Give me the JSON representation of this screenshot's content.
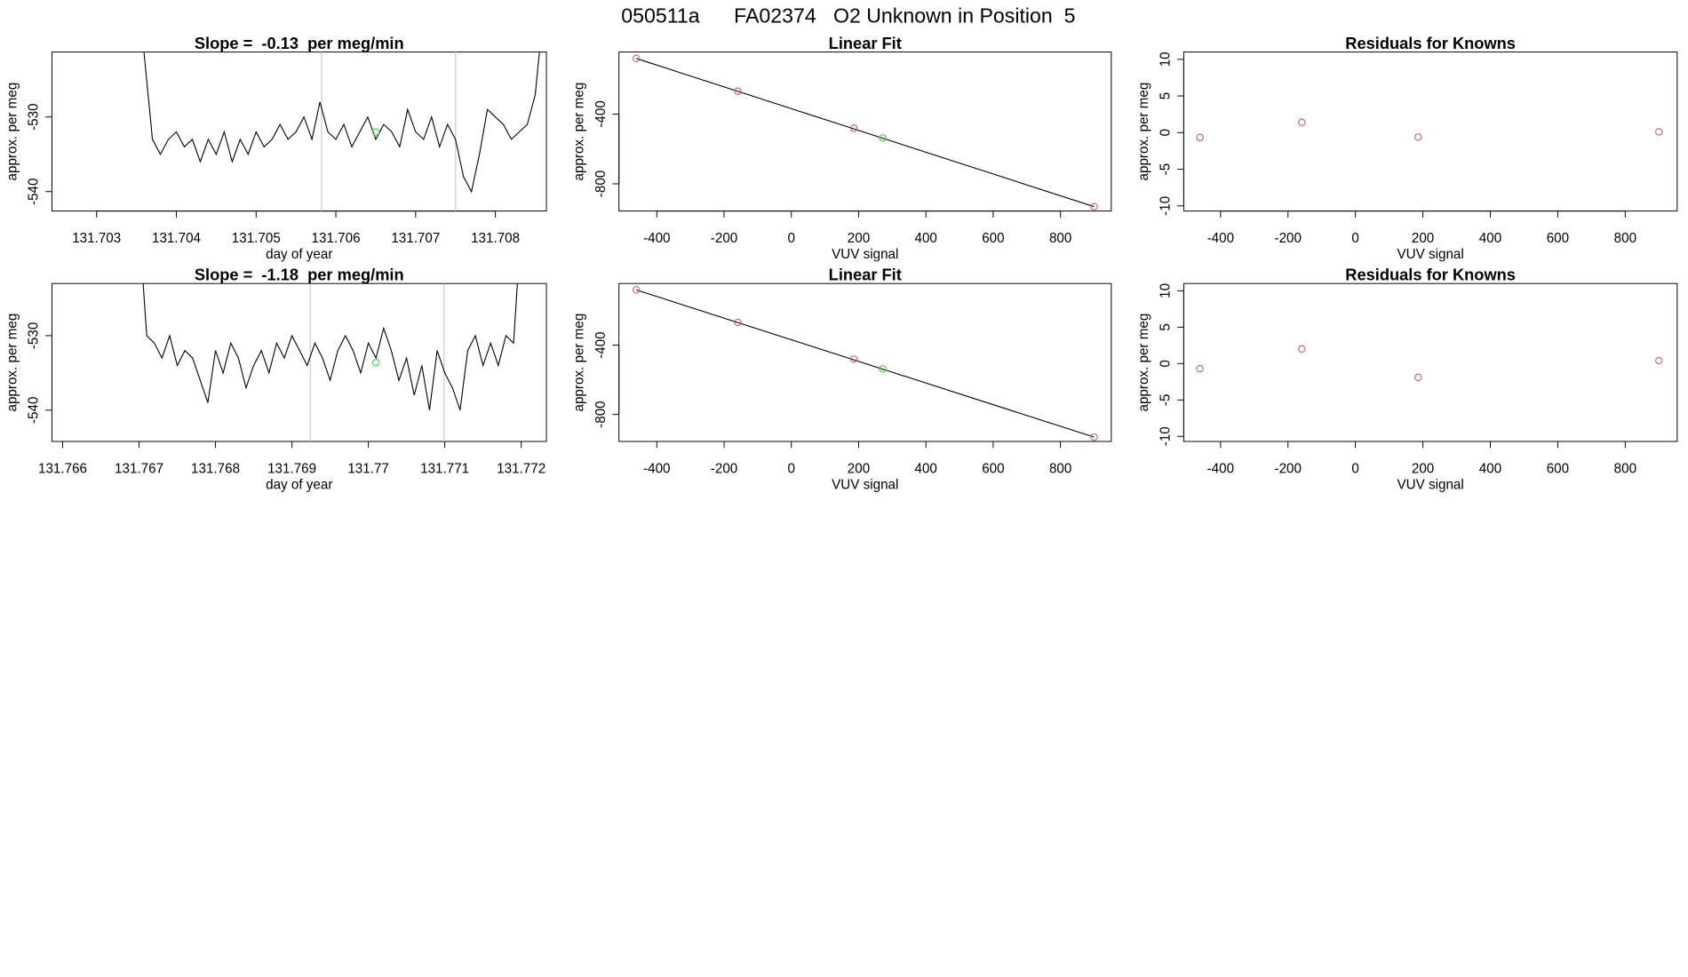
{
  "title": "050511a      FA02374   O2 Unknown in Position  5",
  "chart_data": [
    {
      "type": "line",
      "title": "Slope =  -0.13  per meg/min",
      "xlabel": "day of year",
      "ylabel": "approx. per meg",
      "x": [
        131.7035,
        131.7036,
        131.7037,
        131.7038,
        131.7039,
        131.704,
        131.7041,
        131.7042,
        131.7043,
        131.7044,
        131.7045,
        131.7046,
        131.7047,
        131.7048,
        131.7049,
        131.705,
        131.7051,
        131.7052,
        131.7053,
        131.7054,
        131.7055,
        131.7056,
        131.7057,
        131.7058,
        131.7059,
        131.706,
        131.7061,
        131.7062,
        131.7063,
        131.7064,
        131.7065,
        131.7066,
        131.7067,
        131.7068,
        131.7069,
        131.707,
        131.7071,
        131.7072,
        131.7073,
        131.7074,
        131.7075,
        131.7076,
        131.7077,
        131.7078,
        131.7079,
        131.708,
        131.7081,
        131.7082,
        131.7083,
        131.7084,
        131.7085,
        131.7086
      ],
      "values": [
        -510,
        -522,
        -533,
        -535,
        -533,
        -532,
        -534,
        -533,
        -536,
        -533,
        -535,
        -532,
        -536,
        -533,
        -535,
        -532,
        -534,
        -533,
        -531,
        -533,
        -532,
        -530,
        -533,
        -528,
        -532,
        -533,
        -531,
        -534,
        -532,
        -530,
        -533,
        -531,
        -532,
        -534,
        -529,
        -532,
        -533,
        -530,
        -534,
        -531,
        -533,
        -538,
        -540,
        -535,
        -529,
        -530,
        -531,
        -533,
        -532,
        -531,
        -527,
        -516
      ],
      "color": "#000000",
      "xlim": [
        131.70244,
        131.70864
      ],
      "ylim": [
        -542.6,
        -521.3
      ],
      "xticks": [
        131.703,
        131.704,
        131.705,
        131.706,
        131.707,
        131.708
      ],
      "yticks": [
        -540,
        -530
      ],
      "vlines": [
        131.70582,
        131.7075
      ],
      "vline_color": "#cccccc",
      "unknown": {
        "x": 131.7065,
        "y": -532,
        "color": "#33dd33"
      }
    },
    {
      "type": "scatter",
      "title": "Linear Fit",
      "xlabel": "VUV signal",
      "ylabel": "approx. per meg",
      "x": [
        -461,
        -159,
        186,
        900
      ],
      "values": [
        -81,
        -269,
        -481,
        -931
      ],
      "color": "#cd5c5c",
      "xlim": [
        -512.6,
        951
      ],
      "ylim": [
        -956,
        -44
      ],
      "xticks": [
        -400,
        -200,
        0,
        200,
        400,
        600,
        800
      ],
      "yticks": [
        -800,
        -400
      ],
      "fit": {
        "x": [
          -461,
          900
        ],
        "y": [
          -81,
          -931
        ],
        "color": "#000000"
      },
      "unknown": {
        "x": 272,
        "y": -537,
        "color": "#33dd33"
      }
    },
    {
      "type": "scatter",
      "title": "Residuals for Knowns",
      "xlabel": "VUV signal",
      "ylabel": "approx. per meg",
      "x": [
        -461,
        -159,
        186,
        900
      ],
      "values": [
        -0.67,
        1.4,
        -0.6,
        0.1
      ],
      "color": "#cd5c5c",
      "xlim": [
        -509,
        954
      ],
      "ylim": [
        -10.7,
        11
      ],
      "xticks": [
        -400,
        -200,
        0,
        200,
        400,
        600,
        800
      ],
      "yticks": [
        -10,
        -5,
        0,
        5,
        10
      ]
    },
    {
      "type": "line",
      "title": "Slope =  -1.18  per meg/min",
      "xlabel": "day of year",
      "ylabel": "approx. per meg",
      "x": [
        131.767,
        131.7671,
        131.7672,
        131.7673,
        131.7674,
        131.7675,
        131.7676,
        131.7677,
        131.7678,
        131.7679,
        131.768,
        131.7681,
        131.7682,
        131.7683,
        131.7684,
        131.7685,
        131.7686,
        131.7687,
        131.7688,
        131.7689,
        131.769,
        131.7691,
        131.7692,
        131.7693,
        131.7694,
        131.7695,
        131.7696,
        131.7697,
        131.7698,
        131.7699,
        131.77,
        131.7701,
        131.7702,
        131.7703,
        131.7704,
        131.7705,
        131.7706,
        131.7707,
        131.7708,
        131.7709,
        131.771,
        131.7711,
        131.7712,
        131.7713,
        131.7714,
        131.7715,
        131.7716,
        131.7717,
        131.7718,
        131.7719,
        131.772
      ],
      "values": [
        -515,
        -530,
        -531,
        -533,
        -530,
        -534,
        -532,
        -533,
        -536,
        -539,
        -532,
        -535,
        -531,
        -533,
        -537,
        -534,
        -532,
        -535,
        -531,
        -533,
        -530,
        -532,
        -534,
        -531,
        -533,
        -536,
        -532,
        -530,
        -532,
        -535,
        -531,
        -533,
        -529,
        -532,
        -536,
        -533,
        -538,
        -534,
        -540,
        -532,
        -535,
        -537,
        -540,
        -532,
        -530,
        -534,
        -531,
        -534,
        -530,
        -531,
        -515
      ],
      "color": "#000000",
      "xlim": [
        131.76586,
        131.77233
      ],
      "ylim": [
        -544.2,
        -523
      ],
      "xticks": [
        131.766,
        131.767,
        131.768,
        131.769,
        131.77,
        131.771,
        131.772
      ],
      "yticks": [
        -540,
        -530
      ],
      "vlines": [
        131.76924,
        131.77099
      ],
      "vline_color": "#cccccc",
      "unknown": {
        "x": 131.7701,
        "y": -533.6,
        "color": "#33dd33"
      }
    },
    {
      "type": "scatter",
      "title": "Linear Fit",
      "xlabel": "VUV signal",
      "ylabel": "approx. per meg",
      "x": [
        -461,
        -159,
        186,
        900
      ],
      "values": [
        -81,
        -269,
        -481,
        -931
      ],
      "color": "#cd5c5c",
      "xlim": [
        -512.6,
        951
      ],
      "ylim": [
        -956,
        -44
      ],
      "xticks": [
        -400,
        -200,
        0,
        200,
        400,
        600,
        800
      ],
      "yticks": [
        -800,
        -400
      ],
      "fit": {
        "x": [
          -461,
          900
        ],
        "y": [
          -81,
          -931
        ],
        "color": "#000000"
      },
      "unknown": {
        "x": 272,
        "y": -537,
        "color": "#33dd33"
      }
    },
    {
      "type": "scatter",
      "title": "Residuals for Knowns",
      "xlabel": "VUV signal",
      "ylabel": "approx. per meg",
      "x": [
        -461,
        -159,
        186,
        900
      ],
      "values": [
        -0.7,
        2.0,
        -1.9,
        0.4
      ],
      "color": "#cd5c5c",
      "xlim": [
        -509,
        954
      ],
      "ylim": [
        -10.7,
        11
      ],
      "xticks": [
        -400,
        -200,
        0,
        200,
        400,
        600,
        800
      ],
      "yticks": [
        -10,
        -5,
        0,
        5,
        10
      ]
    }
  ]
}
